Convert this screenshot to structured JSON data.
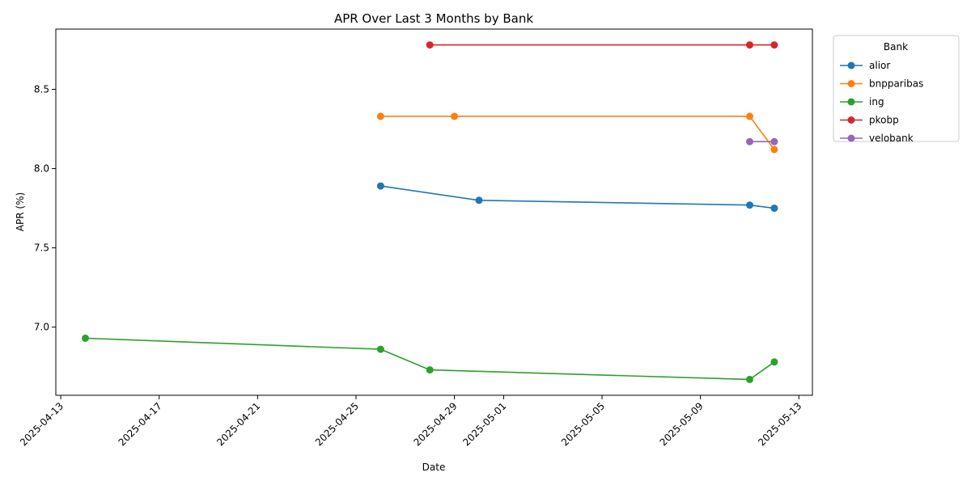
{
  "chart_data": {
    "type": "line",
    "title": "APR Over Last 3 Months by Bank",
    "xlabel": "Date",
    "ylabel": "APR (%)",
    "x_is_date": true,
    "xlim": [
      "2025-04-13",
      "2025-05-13"
    ],
    "ylim": [
      6.57,
      8.88
    ],
    "x_ticks": [
      "2025-04-13",
      "2025-04-17",
      "2025-04-21",
      "2025-04-25",
      "2025-04-29",
      "2025-05-01",
      "2025-05-05",
      "2025-05-09",
      "2025-05-13"
    ],
    "y_ticks": [
      "7.0",
      "7.5",
      "8.0",
      "8.5"
    ],
    "grid": false,
    "legend": {
      "title": "Bank",
      "placement": "outside-top-right"
    },
    "series": [
      {
        "name": "alior",
        "color": "#1f77b4",
        "points": [
          {
            "x": "2025-04-26",
            "y": 7.89
          },
          {
            "x": "2025-04-30",
            "y": 7.8
          },
          {
            "x": "2025-05-11",
            "y": 7.77
          },
          {
            "x": "2025-05-12",
            "y": 7.75
          }
        ]
      },
      {
        "name": "bnpparibas",
        "color": "#ff7f0e",
        "points": [
          {
            "x": "2025-04-26",
            "y": 8.33
          },
          {
            "x": "2025-04-29",
            "y": 8.33
          },
          {
            "x": "2025-05-11",
            "y": 8.33
          },
          {
            "x": "2025-05-12",
            "y": 8.12
          }
        ]
      },
      {
        "name": "ing",
        "color": "#2ca02c",
        "points": [
          {
            "x": "2025-04-14",
            "y": 6.93
          },
          {
            "x": "2025-04-26",
            "y": 6.86
          },
          {
            "x": "2025-04-28",
            "y": 6.73
          },
          {
            "x": "2025-05-11",
            "y": 6.67
          },
          {
            "x": "2025-05-12",
            "y": 6.78
          }
        ]
      },
      {
        "name": "pkobp",
        "color": "#d62728",
        "points": [
          {
            "x": "2025-04-28",
            "y": 8.78
          },
          {
            "x": "2025-05-11",
            "y": 8.78
          },
          {
            "x": "2025-05-12",
            "y": 8.78
          }
        ]
      },
      {
        "name": "velobank",
        "color": "#9467bd",
        "points": [
          {
            "x": "2025-05-11",
            "y": 8.17
          },
          {
            "x": "2025-05-12",
            "y": 8.17
          }
        ]
      }
    ]
  }
}
